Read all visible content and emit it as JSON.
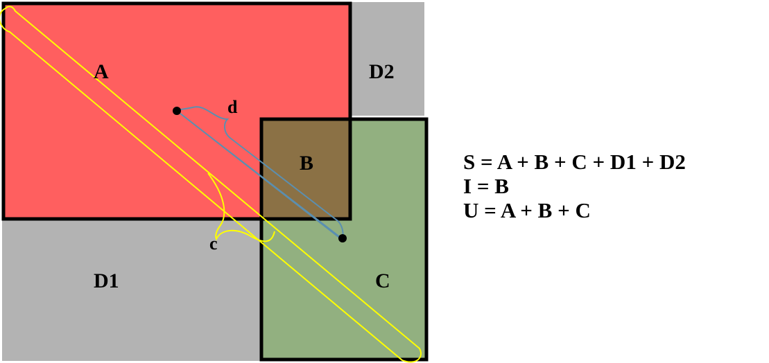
{
  "colors": {
    "region_a": "#ff5f5f",
    "region_b": "#8b7145",
    "region_c": "#92b080",
    "region_d": "#b3b3b3",
    "outline": "#000000",
    "diagonal_c": "#ffff00",
    "diagonal_d": "#5b8fb0"
  },
  "regions": {
    "a": "A",
    "b": "B",
    "c": "C",
    "d1": "D1",
    "d2": "D2"
  },
  "distances": {
    "c": "c",
    "d": "d"
  },
  "formulas": {
    "s": "S = A + B + C + D1 + D2",
    "i": "I = B",
    "u": "U = A + B + C"
  }
}
